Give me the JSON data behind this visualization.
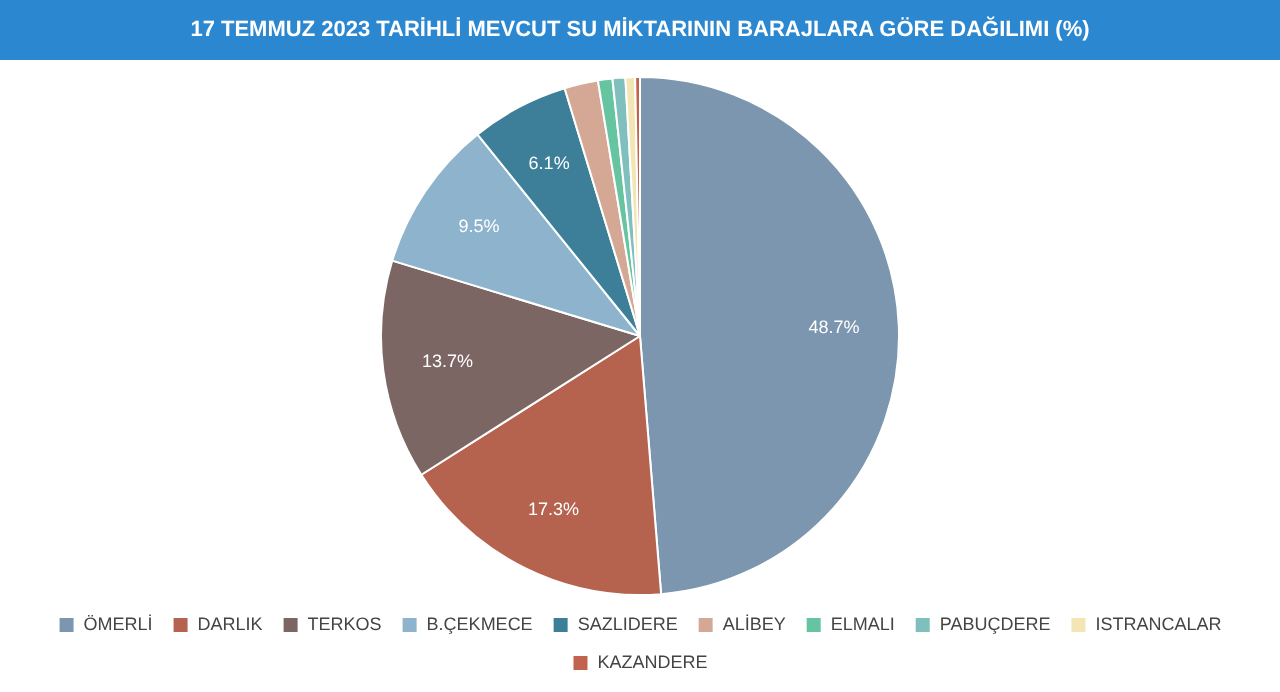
{
  "chart_data": {
    "type": "pie",
    "title": "17 TEMMUZ 2023 TARİHLİ MEVCUT SU MİKTARININ BARAJLARA GÖRE DAĞILIMI (%)",
    "categories": [
      "ÖMERLİ",
      "DARLIK",
      "TERKOS",
      "B.ÇEKMECE",
      "SAZLIDERE",
      "ALİBEY",
      "ELMALI",
      "PABUÇDERE",
      "ISTRANCALAR",
      "KAZANDERE"
    ],
    "values": [
      48.7,
      17.3,
      13.7,
      9.5,
      6.1,
      2.1,
      0.9,
      0.8,
      0.6,
      0.3
    ],
    "value_labels": [
      "48.7%",
      "17.3%",
      "13.7%",
      "9.5%",
      "6.1%",
      null,
      null,
      null,
      null,
      null
    ],
    "colors": [
      "#7b96ae",
      "#b5624e",
      "#7b6663",
      "#8db4cc",
      "#3d7f99",
      "#d4a894",
      "#67c4a0",
      "#7fbfbe",
      "#f3e6b5",
      "#c0634f"
    ],
    "legend": "bottom"
  }
}
